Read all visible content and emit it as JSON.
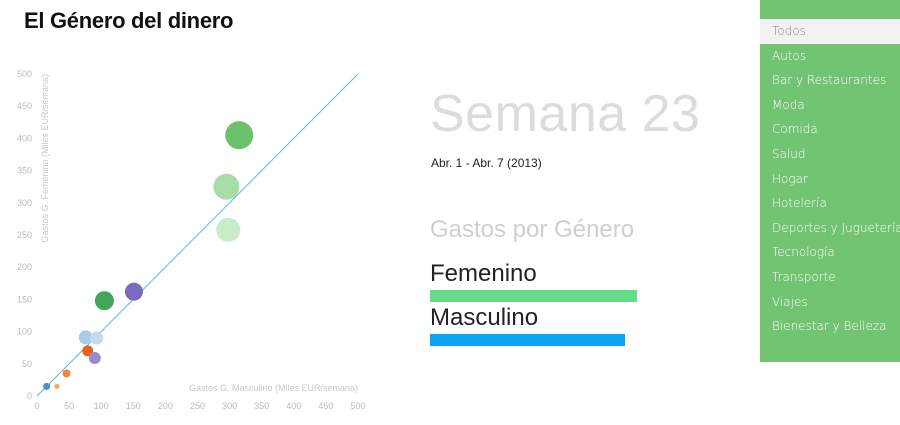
{
  "page": {
    "title": "El Género del dinero"
  },
  "summary": {
    "week": "Semana 23",
    "date_range": "Abr. 1 - Abr. 7 (2013)",
    "section_title": "Gastos por Género",
    "female_label": "Femenino",
    "male_label": "Masculino",
    "female_share": 1.0,
    "male_share": 0.94,
    "female_color": "#66dd88",
    "male_color": "#0aa6f5"
  },
  "sidebar": {
    "accent": "#72c472",
    "items": [
      {
        "label": "Todos",
        "active": true
      },
      {
        "label": "Autos"
      },
      {
        "label": "Bar y Restaurantes"
      },
      {
        "label": "Moda"
      },
      {
        "label": "Comida"
      },
      {
        "label": "Salud"
      },
      {
        "label": "Hogar"
      },
      {
        "label": "Hotelería"
      },
      {
        "label": "Deportes y Juguetería"
      },
      {
        "label": "Tecnología"
      },
      {
        "label": "Transporte"
      },
      {
        "label": "Viajes"
      },
      {
        "label": "Bienestar y Belleza"
      }
    ]
  },
  "chart_data": {
    "type": "scatter",
    "xlabel": "Gastos G. Masculino (Miles EUR/semana)",
    "ylabel": "Gastos G. Femenino (Miles EUR/semana)",
    "xlim": [
      0,
      500
    ],
    "ylim": [
      0,
      500
    ],
    "x_ticks": [
      0,
      50,
      100,
      150,
      200,
      250,
      300,
      350,
      400,
      450,
      500
    ],
    "y_ticks": [
      0,
      50,
      100,
      150,
      200,
      250,
      300,
      350,
      400,
      450,
      500
    ],
    "grid": false,
    "reference_line": {
      "from": [
        0,
        0
      ],
      "to": [
        500,
        500
      ],
      "color": "#5ab4e0"
    },
    "points": [
      {
        "x": 315,
        "y": 405,
        "r": 14,
        "color": "#6cc26c"
      },
      {
        "x": 295,
        "y": 325,
        "r": 13,
        "color": "#a8dca8"
      },
      {
        "x": 298,
        "y": 258,
        "r": 12,
        "color": "#c8ecc8"
      },
      {
        "x": 151,
        "y": 162,
        "r": 9,
        "color": "#7b6bbf"
      },
      {
        "x": 105,
        "y": 148,
        "r": 9.5,
        "color": "#3fa65a"
      },
      {
        "x": 76,
        "y": 91,
        "r": 7,
        "color": "#a9cde6"
      },
      {
        "x": 93,
        "y": 90,
        "r": 6.5,
        "color": "#c3dced"
      },
      {
        "x": 79,
        "y": 70,
        "r": 5.5,
        "color": "#e8621c"
      },
      {
        "x": 90,
        "y": 59,
        "r": 6,
        "color": "#9a8ac8"
      },
      {
        "x": 46,
        "y": 35,
        "r": 4,
        "color": "#f0843a"
      },
      {
        "x": 15,
        "y": 15,
        "r": 3.5,
        "color": "#4e8fc8"
      },
      {
        "x": 31,
        "y": 15,
        "r": 2.5,
        "color": "#f5a64a"
      }
    ]
  }
}
